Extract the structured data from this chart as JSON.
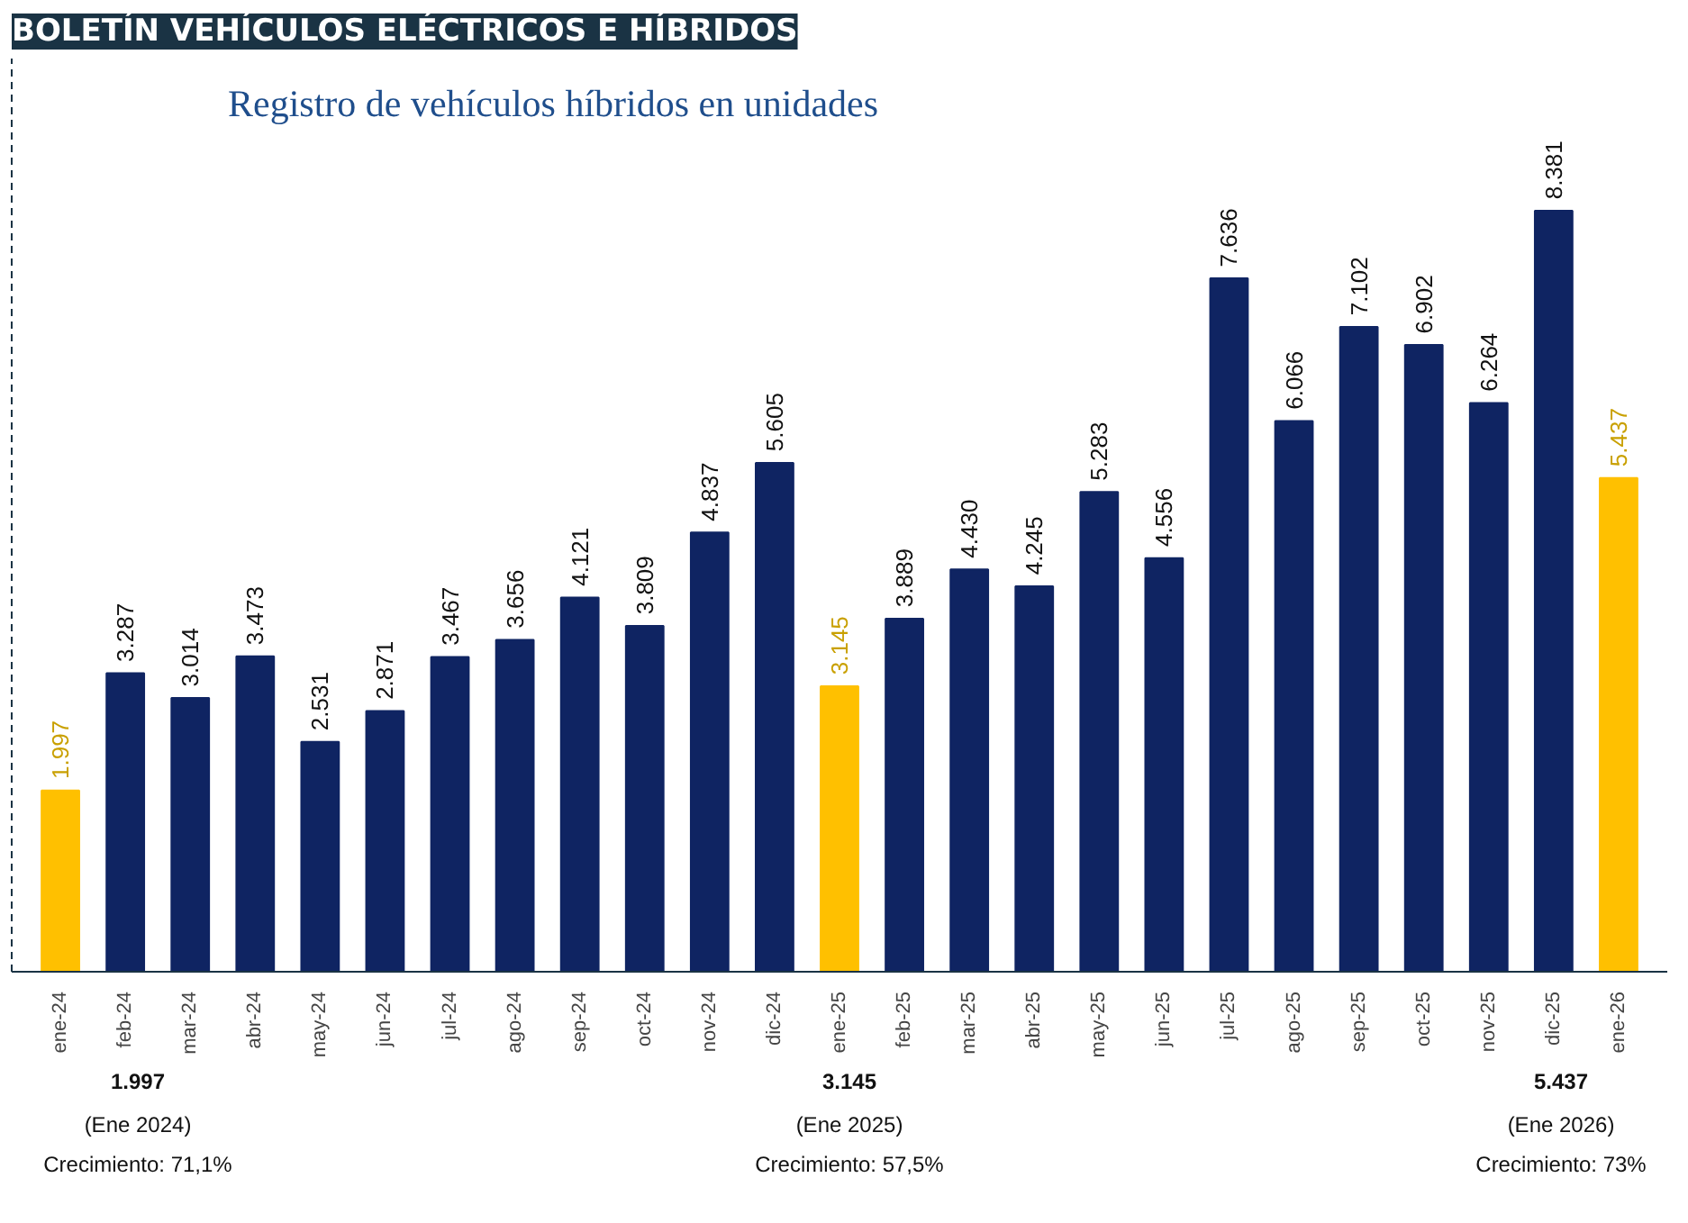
{
  "chart_data": {
    "type": "bar",
    "title": "BOLETÍN VEHÍCULOS ELÉCTRICOS E HÍBRIDOS",
    "subtitle": "Registro de vehículos híbridos  en unidades",
    "categories": [
      "ene-24",
      "feb-24",
      "mar-24",
      "abr-24",
      "may-24",
      "jun-24",
      "jul-24",
      "ago-24",
      "sep-24",
      "oct-24",
      "nov-24",
      "dic-24",
      "ene-25",
      "feb-25",
      "mar-25",
      "abr-25",
      "may-25",
      "jun-25",
      "jul-25",
      "ago-25",
      "sep-25",
      "oct-25",
      "nov-25",
      "dic-25",
      "ene-26"
    ],
    "values": [
      1997,
      3287,
      3014,
      3473,
      2531,
      2871,
      3467,
      3656,
      4121,
      3809,
      4837,
      5605,
      3145,
      3889,
      4430,
      4245,
      5283,
      4556,
      7636,
      6066,
      7102,
      6902,
      6264,
      8381,
      5437
    ],
    "value_labels": [
      "1.997",
      "3.287",
      "3.014",
      "3.473",
      "2.531",
      "2.871",
      "3.467",
      "3.656",
      "4.121",
      "3.809",
      "4.837",
      "5.605",
      "3.145",
      "3.889",
      "4.430",
      "4.245",
      "5.283",
      "4.556",
      "7.636",
      "6.066",
      "7.102",
      "6.902",
      "6.264",
      "8.381",
      "5.437"
    ],
    "colors": [
      "#ffc000",
      "#0f2462",
      "#0f2462",
      "#0f2462",
      "#0f2462",
      "#0f2462",
      "#0f2462",
      "#0f2462",
      "#0f2462",
      "#0f2462",
      "#0f2462",
      "#0f2462",
      "#ffc000",
      "#0f2462",
      "#0f2462",
      "#0f2462",
      "#0f2462",
      "#0f2462",
      "#0f2462",
      "#0f2462",
      "#0f2462",
      "#0f2462",
      "#0f2462",
      "#0f2462",
      "#ffc000"
    ],
    "annotations": [
      "1.997\n(Ene 2024)\nCrecimiento: 71,1%",
      "3.145\n(Ene 2025)\nCrecimiento: 57,5%",
      "5.437\n(Ene 2026)\nCrecimiento: 73%"
    ],
    "tick_labels": "x",
    "grid": false
  }
}
